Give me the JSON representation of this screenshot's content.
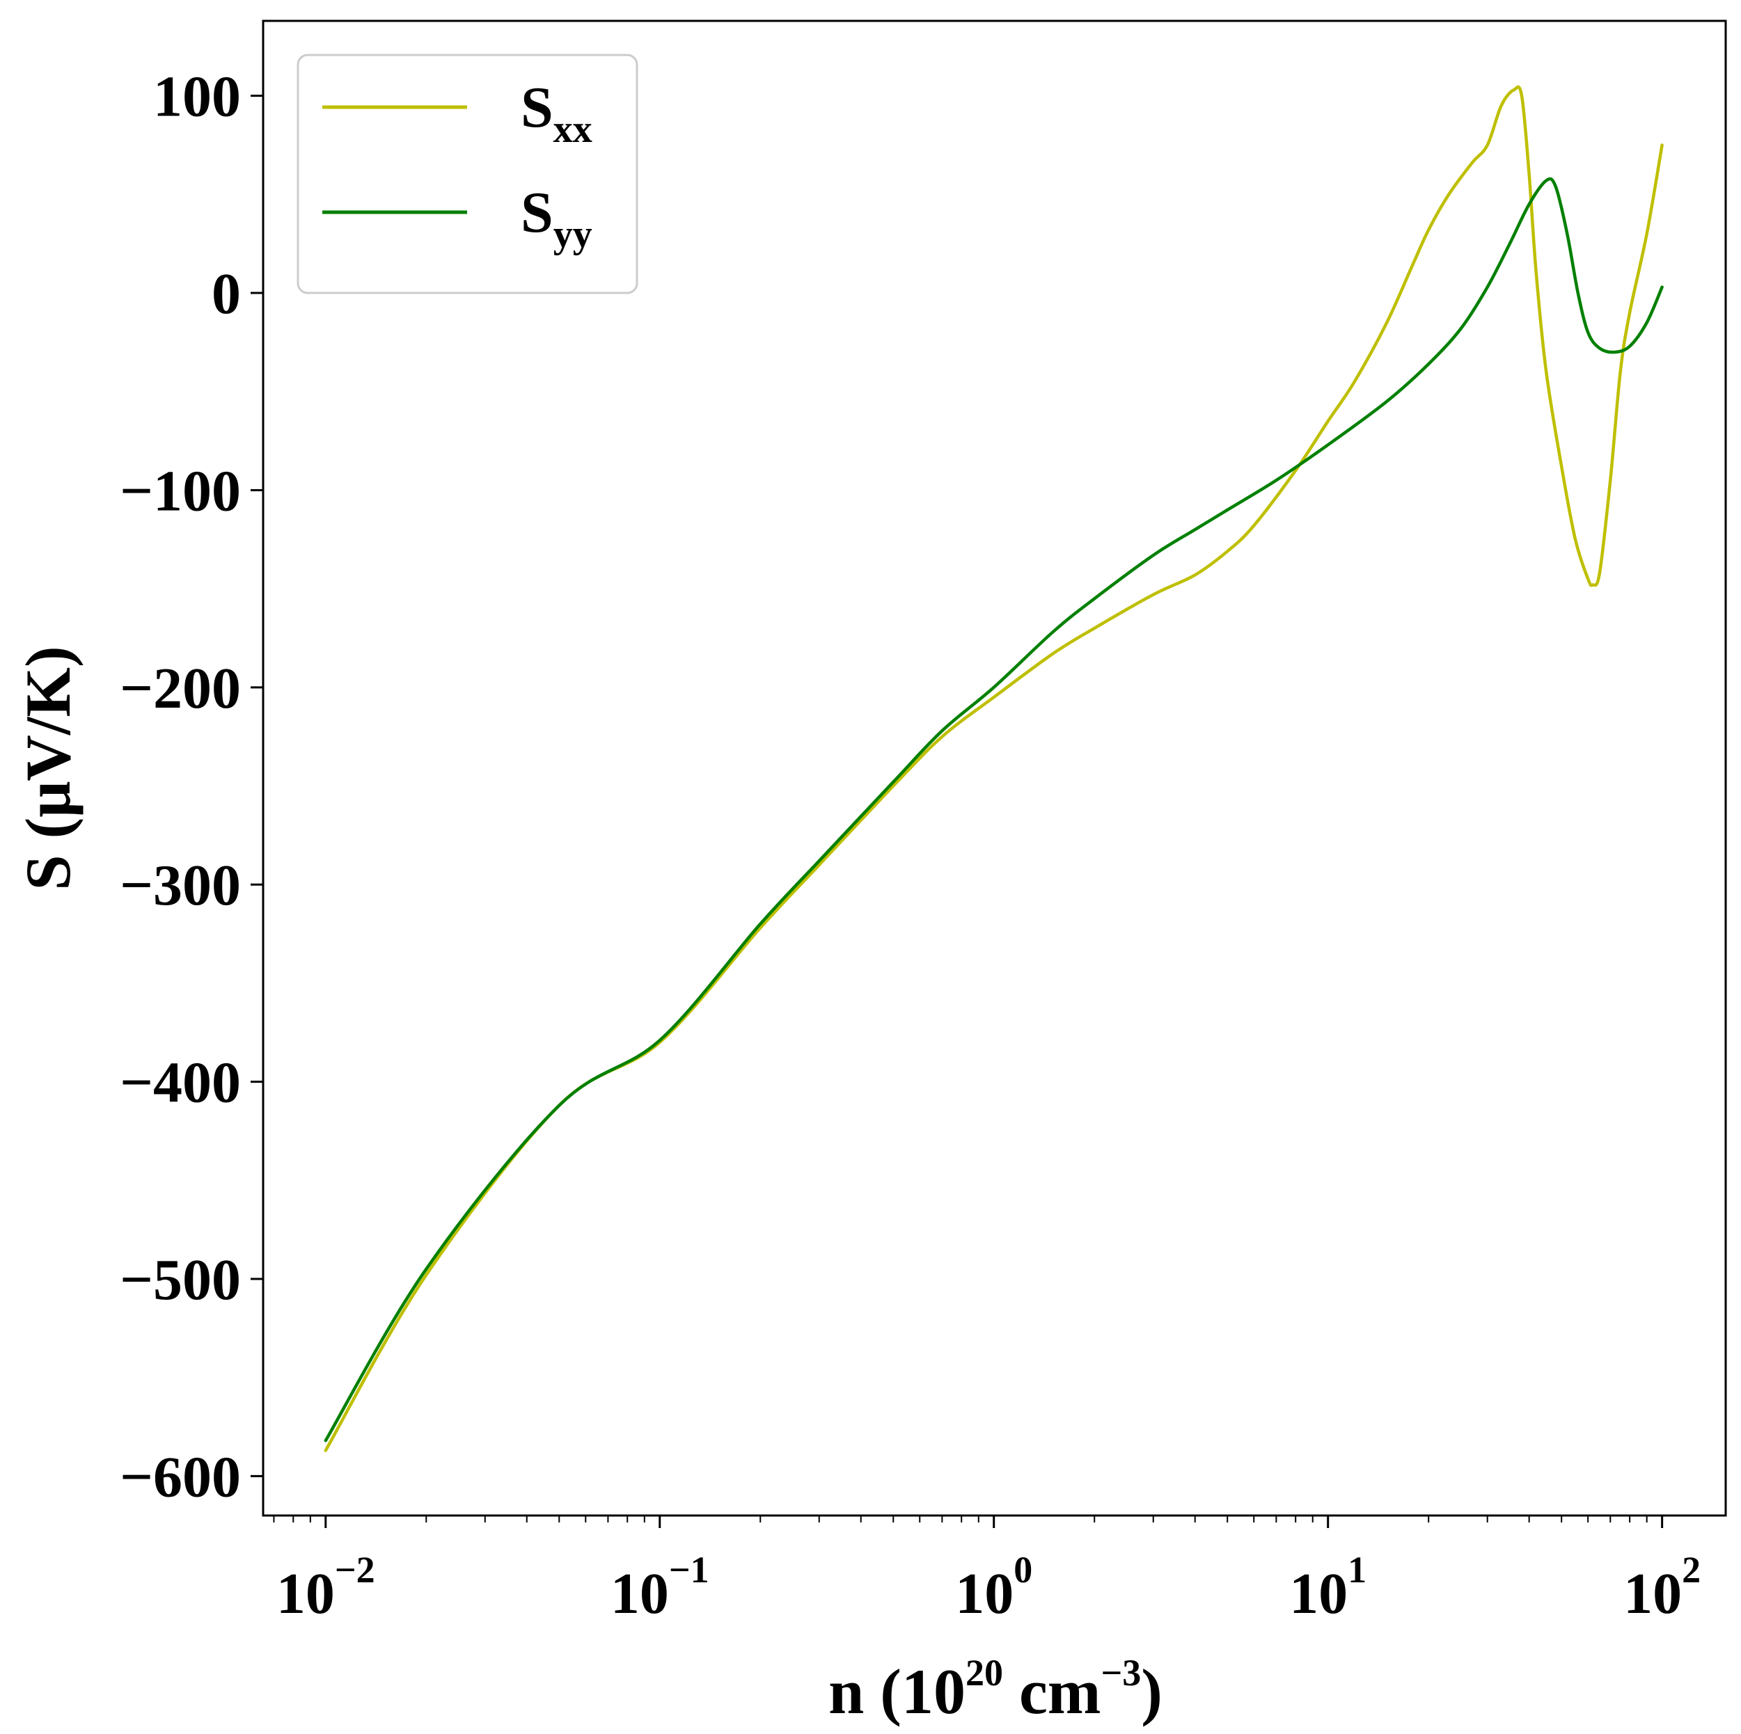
{
  "chart_data": {
    "type": "line",
    "xlabel": {
      "base": "n (10",
      "sup1": "20",
      "mid": " cm",
      "sup2": "−3",
      "end": ")"
    },
    "ylabel": "S (μV/K)",
    "xscale": "log",
    "xlim": [
      0.0065,
      155
    ],
    "ylim": [
      -620,
      138
    ],
    "x_ticks": [
      {
        "value": 0.01,
        "base": "10",
        "exp": "−2"
      },
      {
        "value": 0.1,
        "base": "10",
        "exp": "−1"
      },
      {
        "value": 1,
        "base": "10",
        "exp": "0"
      },
      {
        "value": 10,
        "base": "10",
        "exp": "1"
      },
      {
        "value": 100,
        "base": "10",
        "exp": "2"
      }
    ],
    "y_ticks": [
      {
        "value": 100,
        "label": "100"
      },
      {
        "value": 0,
        "label": "0"
      },
      {
        "value": -100,
        "label": "−100"
      },
      {
        "value": -200,
        "label": "−200"
      },
      {
        "value": -300,
        "label": "−300"
      },
      {
        "value": -400,
        "label": "−400"
      },
      {
        "value": -500,
        "label": "−500"
      },
      {
        "value": -600,
        "label": "−600"
      }
    ],
    "grid": false,
    "legend_position": "top-left",
    "series": [
      {
        "name": {
          "main": "S",
          "sub": "xx"
        },
        "color": "#bfbf00",
        "points": [
          [
            0.01,
            -587
          ],
          [
            0.02,
            -498
          ],
          [
            0.05,
            -412
          ],
          [
            0.1,
            -380
          ],
          [
            0.2,
            -322
          ],
          [
            0.3,
            -290
          ],
          [
            0.5,
            -250
          ],
          [
            0.7,
            -225
          ],
          [
            1.0,
            -205
          ],
          [
            1.5,
            -183
          ],
          [
            2.0,
            -170
          ],
          [
            3.0,
            -153
          ],
          [
            4.0,
            -143
          ],
          [
            5.0,
            -131
          ],
          [
            6.0,
            -118
          ],
          [
            8.0,
            -90
          ],
          [
            10,
            -65
          ],
          [
            12,
            -45
          ],
          [
            15,
            -15
          ],
          [
            18,
            15
          ],
          [
            20,
            32
          ],
          [
            23,
            50
          ],
          [
            27,
            66
          ],
          [
            30,
            75
          ],
          [
            33,
            95
          ],
          [
            36,
            103
          ],
          [
            38,
            100
          ],
          [
            40,
            60
          ],
          [
            42,
            10
          ],
          [
            45,
            -40
          ],
          [
            50,
            -88
          ],
          [
            55,
            -125
          ],
          [
            60,
            -145
          ],
          [
            62,
            -148
          ],
          [
            65,
            -142
          ],
          [
            70,
            -95
          ],
          [
            75,
            -40
          ],
          [
            80,
            -10
          ],
          [
            90,
            30
          ],
          [
            100,
            75
          ]
        ]
      },
      {
        "name": {
          "main": "S",
          "sub": "yy"
        },
        "color": "#008000",
        "points": [
          [
            0.01,
            -582
          ],
          [
            0.02,
            -495
          ],
          [
            0.05,
            -412
          ],
          [
            0.1,
            -379
          ],
          [
            0.2,
            -320
          ],
          [
            0.3,
            -288
          ],
          [
            0.5,
            -248
          ],
          [
            0.7,
            -222
          ],
          [
            1.0,
            -200
          ],
          [
            1.5,
            -172
          ],
          [
            2.0,
            -155
          ],
          [
            3.0,
            -133
          ],
          [
            4.0,
            -120
          ],
          [
            5.0,
            -110
          ],
          [
            7.0,
            -95
          ],
          [
            10,
            -77
          ],
          [
            15,
            -55
          ],
          [
            20,
            -36
          ],
          [
            25,
            -18
          ],
          [
            30,
            3
          ],
          [
            35,
            25
          ],
          [
            40,
            45
          ],
          [
            45,
            57
          ],
          [
            48,
            54
          ],
          [
            52,
            30
          ],
          [
            56,
            0
          ],
          [
            60,
            -20
          ],
          [
            65,
            -28
          ],
          [
            72,
            -30
          ],
          [
            80,
            -27
          ],
          [
            90,
            -15
          ],
          [
            100,
            3
          ]
        ]
      }
    ]
  }
}
